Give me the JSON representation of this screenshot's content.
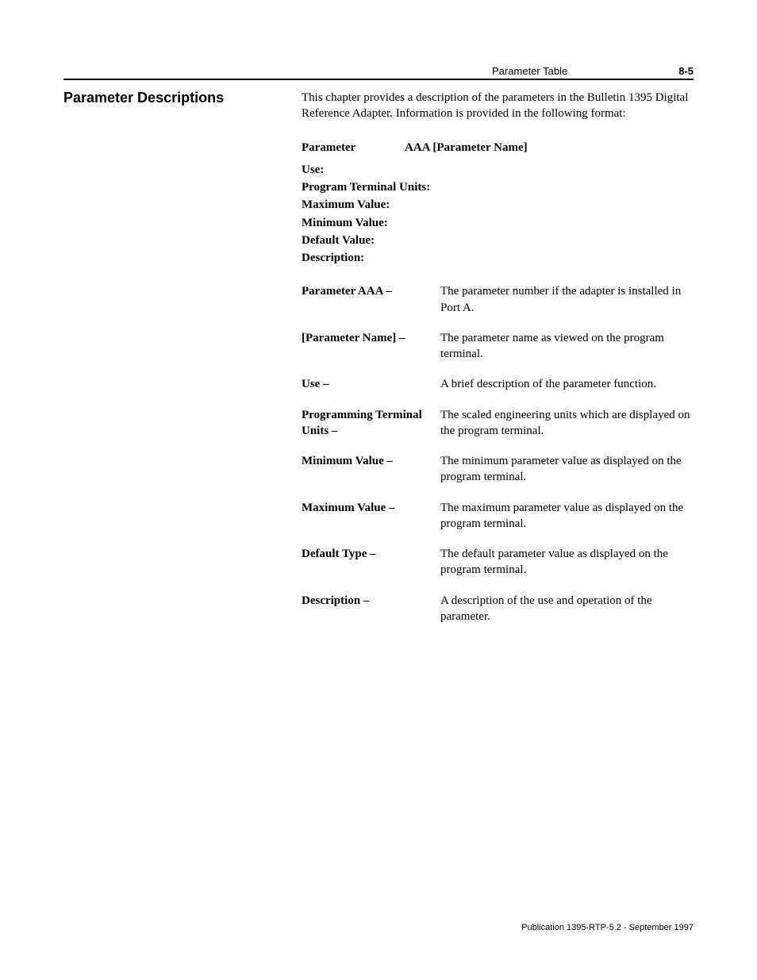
{
  "header": {
    "running_title": "Parameter Table",
    "page_number": "8-5"
  },
  "section_title": "Parameter Descriptions",
  "intro": "This chapter provides a description of the parameters in the Bulletin 1395 Digital Reference Adapter. Information is provided in the following format:",
  "format_header": {
    "label": "Parameter",
    "value": "AAA [Parameter Name]"
  },
  "format_fields": [
    "Use:",
    "Program Terminal Units:",
    "Maximum Value:",
    "Minimum Value:",
    "Default Value:",
    "Description:"
  ],
  "definitions": [
    {
      "term": "Parameter AAA –",
      "desc": "The parameter number if the adapter is installed in Port A."
    },
    {
      "term": "[Parameter Name] –",
      "desc": "The parameter name as viewed on the program terminal."
    },
    {
      "term": "Use –",
      "desc": "A brief description of the parameter function."
    },
    {
      "term": "Programming Terminal Units –",
      "desc": "The scaled engineering units which are displayed on the program terminal."
    },
    {
      "term": "Minimum Value –",
      "desc": "The minimum parameter value as displayed on the program terminal."
    },
    {
      "term": "Maximum Value –",
      "desc": "The maximum parameter value as displayed on the program terminal."
    },
    {
      "term": "Default Type –",
      "desc": "The default parameter value as displayed on the program terminal."
    },
    {
      "term": "Description –",
      "desc": "A description of the use and operation of the parameter."
    }
  ],
  "footer": "Publication 1395-RTP-5.2 - September 1997"
}
